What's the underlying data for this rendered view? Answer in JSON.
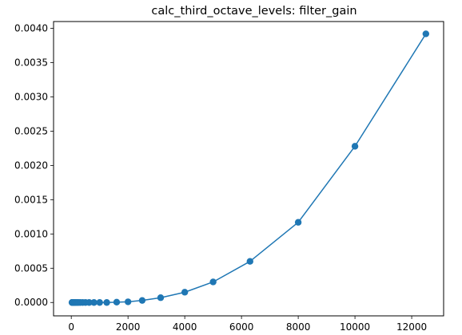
{
  "chart_data": {
    "type": "line",
    "title": "calc_third_octave_levels: filter_gain",
    "xlabel": "",
    "ylabel": "",
    "xlim": [
      -625,
      13125
    ],
    "ylim": [
      -0.000195,
      0.0041
    ],
    "x_ticks": [
      0,
      2000,
      4000,
      6000,
      8000,
      10000,
      12000
    ],
    "x_tick_labels": [
      "0",
      "2000",
      "4000",
      "6000",
      "8000",
      "10000",
      "12000"
    ],
    "y_ticks": [
      0.0,
      0.0005,
      0.001,
      0.0015,
      0.002,
      0.0025,
      0.003,
      0.0035,
      0.004
    ],
    "y_tick_labels": [
      "0.0000",
      "0.0005",
      "0.0010",
      "0.0015",
      "0.0020",
      "0.0025",
      "0.0030",
      "0.0035",
      "0.0040"
    ],
    "grid": false,
    "series": [
      {
        "color": "#1f77b4",
        "marker": "circle",
        "points": [
          {
            "x": 25,
            "y": 0.0
          },
          {
            "x": 31.5,
            "y": 0.0
          },
          {
            "x": 40,
            "y": 0.0
          },
          {
            "x": 50,
            "y": 0.0
          },
          {
            "x": 63,
            "y": 0.0
          },
          {
            "x": 80,
            "y": 0.0
          },
          {
            "x": 100,
            "y": 0.0
          },
          {
            "x": 125,
            "y": 0.0
          },
          {
            "x": 160,
            "y": 0.0
          },
          {
            "x": 200,
            "y": 0.0
          },
          {
            "x": 250,
            "y": 0.0
          },
          {
            "x": 315,
            "y": 0.0
          },
          {
            "x": 400,
            "y": 0.0
          },
          {
            "x": 500,
            "y": 0.0
          },
          {
            "x": 630,
            "y": 0.0
          },
          {
            "x": 800,
            "y": 0.0
          },
          {
            "x": 1000,
            "y": 0.0
          },
          {
            "x": 1250,
            "y": 0.0
          },
          {
            "x": 1600,
            "y": 5e-06
          },
          {
            "x": 2000,
            "y": 1e-05
          },
          {
            "x": 2500,
            "y": 3e-05
          },
          {
            "x": 3150,
            "y": 7e-05
          },
          {
            "x": 4000,
            "y": 0.00015
          },
          {
            "x": 5000,
            "y": 0.0003
          },
          {
            "x": 6300,
            "y": 0.0006
          },
          {
            "x": 8000,
            "y": 0.00117
          },
          {
            "x": 10000,
            "y": 0.00228
          },
          {
            "x": 12500,
            "y": 0.00392
          }
        ]
      }
    ]
  }
}
